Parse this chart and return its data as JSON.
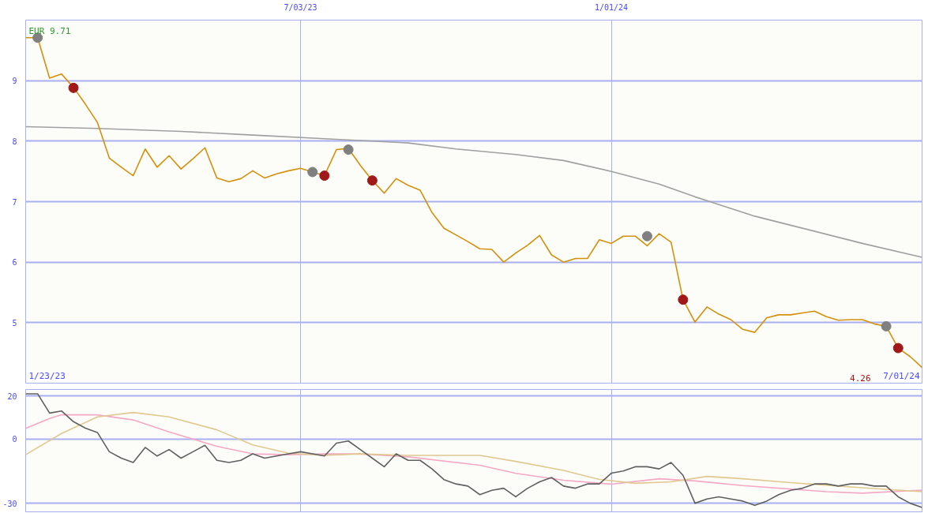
{
  "chart_data": [
    {
      "type": "line",
      "x": [
        "2023-01-23",
        "2023-01-30",
        "2023-02-06",
        "2023-02-13",
        "2023-02-20",
        "2023-02-27",
        "2023-03-06",
        "2023-03-13",
        "2023-03-20",
        "2023-03-27",
        "2023-04-03",
        "2023-04-10",
        "2023-04-17",
        "2023-04-24",
        "2023-05-01",
        "2023-05-08",
        "2023-05-15",
        "2023-05-22",
        "2023-05-29",
        "2023-06-05",
        "2023-06-12",
        "2023-06-19",
        "2023-06-26",
        "2023-07-03",
        "2023-07-10",
        "2023-07-17",
        "2023-07-24",
        "2023-07-31",
        "2023-08-07",
        "2023-08-14",
        "2023-08-21",
        "2023-08-28",
        "2023-09-04",
        "2023-09-11",
        "2023-09-18",
        "2023-09-25",
        "2023-10-02",
        "2023-10-09",
        "2023-10-16",
        "2023-10-23",
        "2023-10-30",
        "2023-11-06",
        "2023-11-13",
        "2023-11-20",
        "2023-11-27",
        "2023-12-04",
        "2023-12-11",
        "2023-12-18",
        "2023-12-25",
        "2024-01-01",
        "2024-01-08",
        "2024-01-15",
        "2024-01-22",
        "2024-01-29",
        "2024-02-05",
        "2024-02-12",
        "2024-02-19",
        "2024-02-26",
        "2024-03-04",
        "2024-03-11",
        "2024-03-18",
        "2024-03-25",
        "2024-04-01",
        "2024-04-08",
        "2024-04-15",
        "2024-04-22",
        "2024-04-29",
        "2024-05-06",
        "2024-05-13",
        "2024-05-20",
        "2024-05-27",
        "2024-06-03",
        "2024-06-10",
        "2024-06-17",
        "2024-06-24",
        "2024-07-01"
      ],
      "series": [
        {
          "color": "#a0a0a0",
          "x": [
            "2023-01-23",
            "2023-03-06",
            "2023-04-24",
            "2023-06-05",
            "2023-07-17",
            "2023-09-04",
            "2023-10-02",
            "2023-11-06",
            "2023-12-04",
            "2024-01-01",
            "2024-01-29",
            "2024-02-19",
            "2024-03-25",
            "2024-04-15",
            "2024-05-27",
            "2024-07-01"
          ],
          "values": [
            8.24,
            8.21,
            8.16,
            8.1,
            8.04,
            7.97,
            7.87,
            7.78,
            7.68,
            7.5,
            7.29,
            7.08,
            6.76,
            6.61,
            6.31,
            6.08
          ]
        },
        {
          "color": "#d4900a",
          "values": [
            9.71,
            9.71,
            9.04,
            9.11,
            8.89,
            8.61,
            8.31,
            7.72,
            7.57,
            7.43,
            7.87,
            7.57,
            7.76,
            7.54,
            7.71,
            7.89,
            7.39,
            7.33,
            7.38,
            7.51,
            7.39,
            7.46,
            7.51,
            7.55,
            7.49,
            7.43,
            7.86,
            7.88,
            7.6,
            7.35,
            7.14,
            7.38,
            7.27,
            7.19,
            6.82,
            6.56,
            6.45,
            6.34,
            6.22,
            6.21,
            6.0,
            6.15,
            6.28,
            6.44,
            6.12,
            6.0,
            6.06,
            6.06,
            6.37,
            6.31,
            6.43,
            6.43,
            6.27,
            6.47,
            6.33,
            5.38,
            5.01,
            5.26,
            5.14,
            5.05,
            4.89,
            4.84,
            5.08,
            5.13,
            5.13,
            5.16,
            5.19,
            5.1,
            5.04,
            5.05,
            5.05,
            4.98,
            4.94,
            4.58,
            4.44,
            4.26
          ]
        },
        {
          "type": "scatter",
          "marker": "circle",
          "color": "#808080",
          "x": [
            "2023-01-30",
            "2023-07-10",
            "2023-07-31",
            "2024-01-22",
            "2024-06-10"
          ],
          "values": [
            9.71,
            7.49,
            7.86,
            6.43,
            4.94
          ]
        },
        {
          "type": "scatter",
          "marker": "circle",
          "color": "#a01818",
          "x": [
            "2023-02-20",
            "2023-07-17",
            "2023-08-14",
            "2024-02-12",
            "2024-06-17"
          ],
          "values": [
            8.88,
            7.43,
            7.35,
            5.38,
            4.58
          ]
        }
      ],
      "xlim": [
        "2023-01-23",
        "2024-07-01"
      ],
      "xticks": [
        {
          "value": "2023-07-03",
          "label": "7/03/23"
        },
        {
          "value": "2024-01-01",
          "label": "1/01/24"
        }
      ],
      "ylim": [
        4,
        10
      ],
      "yticks": [
        5,
        6,
        7,
        8,
        9
      ],
      "grid": true,
      "annotations": [
        {
          "text": "EUR 9.71",
          "x": "2023-01-23",
          "y": 9.71
        },
        "1/23/23",
        "4.26",
        "7/01/24"
      ]
    },
    {
      "type": "line",
      "x": [
        "2023-01-23",
        "2023-01-30",
        "2023-02-06",
        "2023-02-13",
        "2023-02-20",
        "2023-02-27",
        "2023-03-06",
        "2023-03-13",
        "2023-03-20",
        "2023-03-27",
        "2023-04-03",
        "2023-04-10",
        "2023-04-17",
        "2023-04-24",
        "2023-05-01",
        "2023-05-08",
        "2023-05-15",
        "2023-05-22",
        "2023-05-29",
        "2023-06-05",
        "2023-06-12",
        "2023-06-19",
        "2023-06-26",
        "2023-07-03",
        "2023-07-10",
        "2023-07-17",
        "2023-07-24",
        "2023-07-31",
        "2023-08-07",
        "2023-08-14",
        "2023-08-21",
        "2023-08-28",
        "2023-09-04",
        "2023-09-11",
        "2023-09-18",
        "2023-09-25",
        "2023-10-02",
        "2023-10-09",
        "2023-10-16",
        "2023-10-23",
        "2023-10-30",
        "2023-11-06",
        "2023-11-13",
        "2023-11-20",
        "2023-11-27",
        "2023-12-04",
        "2023-12-11",
        "2023-12-18",
        "2023-12-25",
        "2024-01-01",
        "2024-01-08",
        "2024-01-15",
        "2024-01-22",
        "2024-01-29",
        "2024-02-05",
        "2024-02-12",
        "2024-02-19",
        "2024-02-26",
        "2024-03-04",
        "2024-03-11",
        "2024-03-18",
        "2024-03-25",
        "2024-04-01",
        "2024-04-08",
        "2024-04-15",
        "2024-04-22",
        "2024-04-29",
        "2024-05-06",
        "2024-05-13",
        "2024-05-20",
        "2024-05-27",
        "2024-06-03",
        "2024-06-10",
        "2024-06-17",
        "2024-06-24",
        "2024-07-01"
      ],
      "series": [
        {
          "color": "#f4a8c4",
          "x": [
            "2023-01-23",
            "2023-02-06",
            "2023-02-13",
            "2023-03-06",
            "2023-03-27",
            "2023-04-17",
            "2023-05-15",
            "2023-06-05",
            "2023-06-26",
            "2023-07-17",
            "2023-08-07",
            "2023-09-04",
            "2023-10-16",
            "2023-11-06",
            "2023-12-04",
            "2024-01-01",
            "2024-01-29",
            "2024-02-19",
            "2024-03-18",
            "2024-05-06",
            "2024-05-27",
            "2024-07-01"
          ],
          "values": [
            4.9,
            9.5,
            11.2,
            11.2,
            8.8,
            3.2,
            -3.5,
            -7.0,
            -7.4,
            -7.0,
            -7.0,
            -8.4,
            -12.3,
            -16.1,
            -19.3,
            -21.1,
            -18.6,
            -19.6,
            -21.8,
            -24.6,
            -25.3,
            -23.9
          ]
        },
        {
          "color": "#e0c890",
          "x": [
            "2023-01-23",
            "2023-02-13",
            "2023-03-06",
            "2023-03-27",
            "2023-04-17",
            "2023-05-15",
            "2023-06-05",
            "2023-06-26",
            "2023-07-17",
            "2023-08-07",
            "2023-09-04",
            "2023-10-16",
            "2023-11-06",
            "2023-12-04",
            "2023-12-25",
            "2024-01-15",
            "2024-02-05",
            "2024-02-26",
            "2024-03-18",
            "2024-04-15",
            "2024-05-27",
            "2024-07-01"
          ],
          "values": [
            -7.4,
            2.5,
            10.2,
            12.3,
            10.2,
            4.2,
            -2.8,
            -6.7,
            -7.7,
            -7.0,
            -7.7,
            -7.7,
            -10.5,
            -14.7,
            -18.9,
            -20.7,
            -20.0,
            -17.5,
            -18.6,
            -20.4,
            -22.8,
            -24.6
          ]
        },
        {
          "color": "#606060",
          "values": [
            21,
            21,
            12,
            13,
            8,
            5,
            3,
            -6,
            -9,
            -11,
            -4,
            -8,
            -5,
            -9,
            -6,
            -3,
            -10,
            -11,
            -10,
            -7,
            -9,
            -8,
            -7,
            -6,
            -7,
            -8,
            -2,
            -1,
            -5,
            -9,
            -13,
            -7,
            -10,
            -10,
            -14,
            -19,
            -21,
            -22,
            -26,
            -24,
            -23,
            -27,
            -23,
            -20,
            -18,
            -22,
            -23,
            -21,
            -21,
            -16,
            -15,
            -13,
            -13,
            -14,
            -11,
            -17,
            -30,
            -28,
            -27,
            -28,
            -29,
            -31,
            -29,
            -26,
            -24,
            -23,
            -21,
            -21,
            -22,
            -21,
            -21,
            -22,
            -22,
            -27,
            -30,
            -32
          ]
        }
      ],
      "xlim": [
        "2023-01-23",
        "2024-07-01"
      ],
      "xticks": [
        {
          "value": "2023-07-03",
          "label": null
        },
        {
          "value": "2024-01-01",
          "label": null
        }
      ],
      "ylim": [
        -34,
        23
      ],
      "yticks": [
        20,
        0,
        -30
      ],
      "tick_labels": "y",
      "grid": true
    }
  ]
}
